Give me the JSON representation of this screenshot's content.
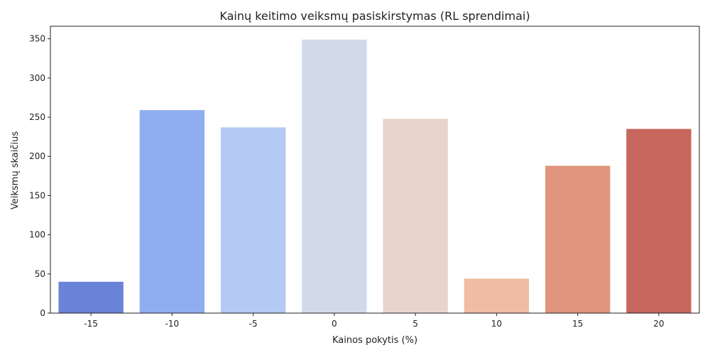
{
  "chart_data": {
    "type": "bar",
    "title": "Kainų keitimo veiksmų pasiskirstymas (RL sprendimai)",
    "xlabel": "Kainos pokytis (%)",
    "ylabel": "Veiksmų skaičius",
    "categories": [
      "-15",
      "-10",
      "-5",
      "0",
      "5",
      "10",
      "15",
      "20"
    ],
    "values": [
      40,
      259,
      237,
      349,
      248,
      44,
      188,
      235
    ],
    "colors": [
      "#6b82d9",
      "#8faef0",
      "#b5c9f5",
      "#d1dae9",
      "#e7d5cd",
      "#f0bca4",
      "#e0957c",
      "#c8675d"
    ],
    "ylim": [
      0,
      366
    ],
    "yticks": [
      0,
      50,
      100,
      150,
      200,
      250,
      300,
      350
    ],
    "grid": false,
    "legend": "none"
  }
}
